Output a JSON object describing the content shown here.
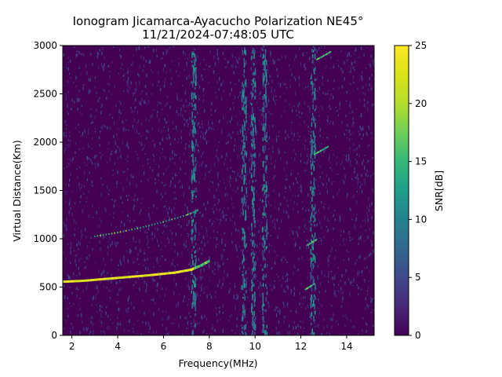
{
  "chart_data": {
    "type": "heatmap",
    "title": "Ionogram Jicamarca-Ayacucho Polarization NE45°",
    "subtitle": "11/21/2024-07:48:05 UTC",
    "xlabel": "Frequency(MHz)",
    "ylabel": "Virtual Distance(Km)",
    "xlim": [
      1.6,
      15.2
    ],
    "ylim": [
      0,
      3000
    ],
    "xticks": [
      2,
      4,
      6,
      8,
      10,
      12,
      14
    ],
    "yticks": [
      0,
      500,
      1000,
      1500,
      2000,
      2500,
      3000
    ],
    "colorbar": {
      "label": "SNR[dB]",
      "range": [
        0,
        25
      ],
      "ticks": [
        0,
        5,
        10,
        15,
        20,
        25
      ],
      "colormap": "viridis"
    },
    "grid": false,
    "traces": [
      {
        "x": [
          1.6,
          2.5,
          3.5,
          4.5,
          5.5,
          6.5,
          7.2,
          7.6,
          8.0
        ],
        "y": [
          555,
          565,
          585,
          605,
          625,
          650,
          680,
          720,
          770
        ]
      },
      {
        "x": [
          3.0,
          4.0,
          5.0,
          6.0,
          7.0,
          7.5
        ],
        "y": [
          1020,
          1060,
          1110,
          1170,
          1240,
          1290
        ]
      },
      {
        "x": [
          12.2,
          12.4,
          12.6
        ],
        "y": [
          470,
          500,
          530
        ]
      },
      {
        "x": [
          12.3,
          12.5,
          12.7
        ],
        "y": [
          930,
          960,
          990
        ]
      },
      {
        "x": [
          12.6,
          12.9,
          13.2
        ],
        "y": [
          1870,
          1910,
          1950
        ]
      },
      {
        "x": [
          12.7,
          13.0,
          13.3
        ],
        "y": [
          2850,
          2890,
          2930
        ]
      }
    ],
    "noise_bands_mhz": [
      7.3,
      9.5,
      9.9,
      10.4,
      12.5
    ]
  }
}
